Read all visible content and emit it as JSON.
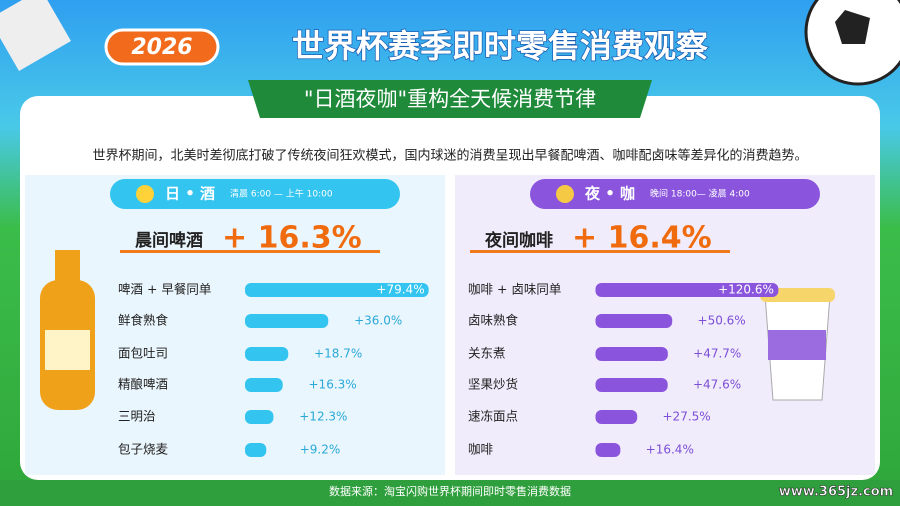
{
  "header": {
    "year": "2026",
    "title": "世界杯赛季即时零售消费观察",
    "subtitle": "\"日酒夜咖\"重构全天候消费节律"
  },
  "intro": "世界杯期间，北美时差彻底打破了传统夜间狂欢模式，国内球迷的消费呈现出早餐配啤酒、咖啡配卤味等差异化的消费趋势。",
  "chart_data": [
    {
      "type": "bar",
      "title": "日 • 酒",
      "time": "清晨 6:00 — 上午 10:00",
      "highlight": "晨间啤酒",
      "highlight_value": "+ 16.3%",
      "categories": [
        "啤酒 + 早餐同单",
        "鲜食熟食",
        "面包吐司",
        "精酿啤酒",
        "三明治",
        "包子烧麦"
      ],
      "values": [
        79.4,
        36.0,
        18.7,
        16.3,
        12.3,
        9.2
      ],
      "value_labels": [
        "+79.4%",
        "+36.0%",
        "+18.7%",
        "+16.3%",
        "+12.3%",
        "+9.2%"
      ],
      "color": "#33c4ef",
      "xlim": [
        0,
        80
      ]
    },
    {
      "type": "bar",
      "title": "夜 • 咖",
      "time": "晚间 18:00— 凌晨 4:00",
      "highlight": "夜间咖啡",
      "highlight_value": "+ 16.4%",
      "categories": [
        "咖啡 + 卤味同单",
        "卤味熟食",
        "关东煮",
        "坚果炒货",
        "速冻面点",
        "咖啡"
      ],
      "values": [
        120.6,
        50.6,
        47.7,
        47.6,
        27.5,
        16.4
      ],
      "value_labels": [
        "+120.6%",
        "+50.6%",
        "+47.7%",
        "+47.6%",
        "+27.5%",
        "+16.4%"
      ],
      "color": "#8a55dc",
      "xlim": [
        0,
        122
      ]
    }
  ],
  "footer": "数据来源：淘宝闪购世界杯期间即时零售消费数据",
  "watermark": "www.365jz.com"
}
